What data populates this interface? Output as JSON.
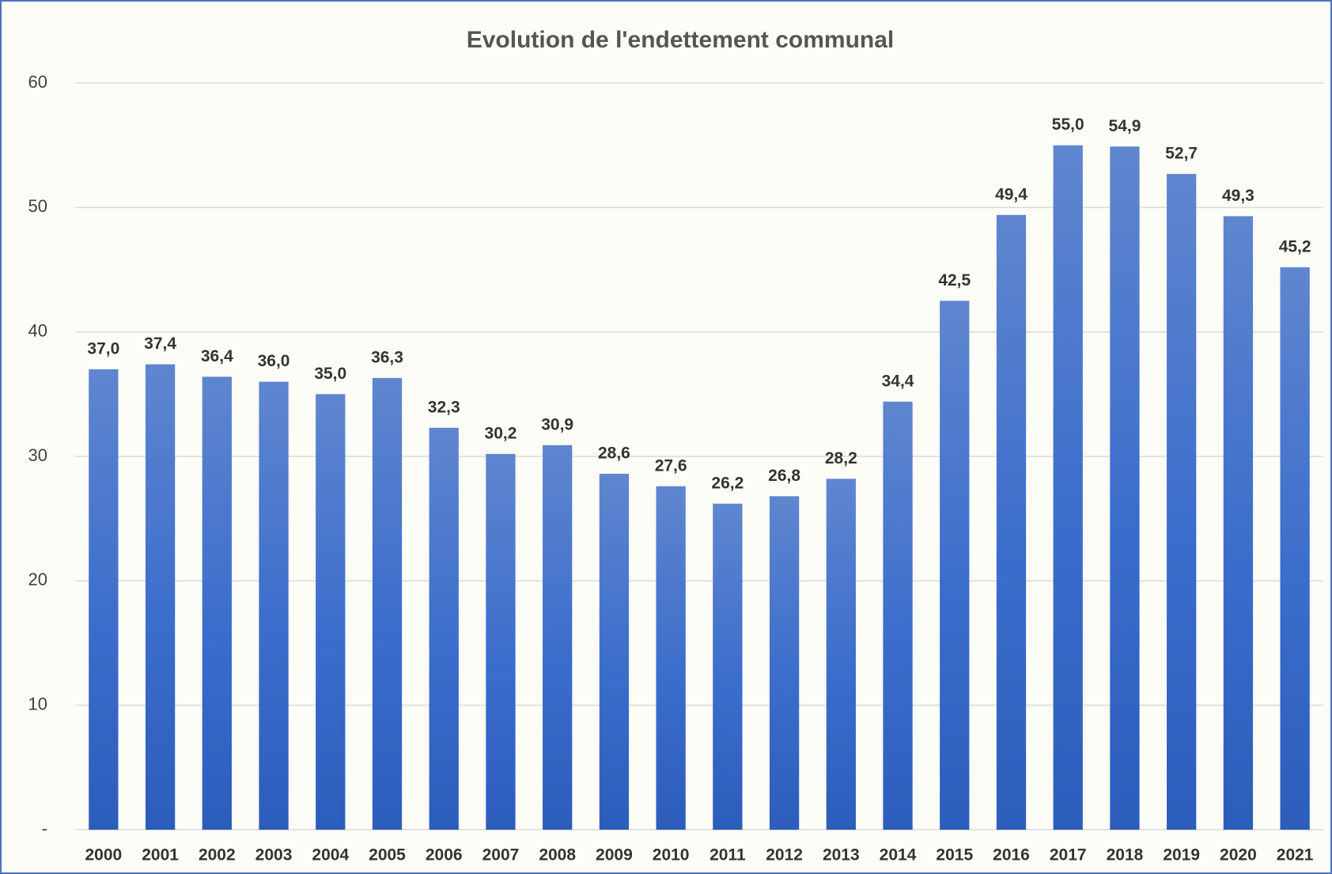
{
  "chart_data": {
    "type": "bar",
    "title": "Evolution de l'endettement communal",
    "categories": [
      "2000",
      "2001",
      "2002",
      "2003",
      "2004",
      "2005",
      "2006",
      "2007",
      "2008",
      "2009",
      "2010",
      "2011",
      "2012",
      "2013",
      "2014",
      "2015",
      "2016",
      "2017",
      "2018",
      "2019",
      "2020",
      "2021"
    ],
    "values": [
      37.0,
      37.4,
      36.4,
      36.0,
      35.0,
      36.3,
      32.3,
      30.2,
      30.9,
      28.6,
      27.6,
      26.2,
      26.8,
      28.2,
      34.4,
      42.5,
      49.4,
      55.0,
      54.9,
      52.7,
      49.3,
      45.2
    ],
    "value_labels": [
      "37,0",
      "37,4",
      "36,4",
      "36,0",
      "35,0",
      "36,3",
      "32,3",
      "30,2",
      "30,9",
      "28,6",
      "27,6",
      "26,2",
      "26,8",
      "28,2",
      "34,4",
      "42,5",
      "49,4",
      "55,0",
      "54,9",
      "52,7",
      "49,3",
      "45,2"
    ],
    "color": "#3b6dcc",
    "ylim": [
      0,
      60
    ],
    "yticks": [
      {
        "value": 0,
        "label": "-"
      },
      10,
      20,
      30,
      40,
      50,
      60
    ],
    "grid": true
  }
}
